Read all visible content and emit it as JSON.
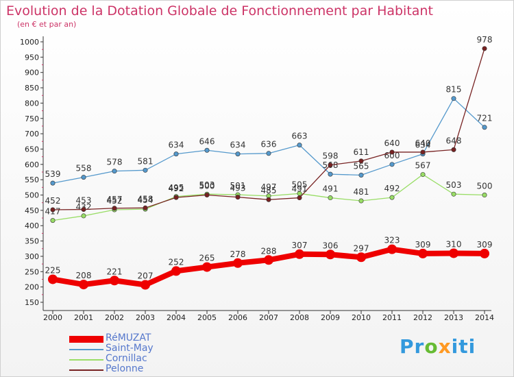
{
  "header": {
    "title": "Evolution de la Dotation Globale de Fonctionnement par Habitant",
    "subtitle": "(en € et par an)"
  },
  "logo": {
    "text": "Proxiti",
    "colors": [
      "#3399dd",
      "#66bb33",
      "#ff9922"
    ]
  },
  "chart_data": {
    "type": "line",
    "title": "Evolution de la Dotation Globale de Fonctionnement par Habitant",
    "subtitle": "(en € et par an)",
    "xlabel": "",
    "ylabel": "",
    "x": [
      "2000",
      "2001",
      "2002",
      "2003",
      "2004",
      "2005",
      "2006",
      "2007",
      "2008",
      "2009",
      "2010",
      "2011",
      "2012",
      "2013",
      "2014"
    ],
    "ylim": [
      150,
      1000
    ],
    "yticks": [
      150,
      200,
      250,
      300,
      350,
      400,
      450,
      500,
      550,
      600,
      650,
      700,
      750,
      800,
      850,
      900,
      950,
      1000
    ],
    "grid": false,
    "legend": "bottom-left",
    "series": [
      {
        "name": "RéMUZAT",
        "color": "#ee0000",
        "values": [
          225,
          208,
          221,
          207,
          252,
          265,
          278,
          288,
          307,
          306,
          297,
          323,
          309,
          310,
          309
        ],
        "labels": [
          "225",
          "208",
          "221",
          "207",
          "252",
          "265",
          "278",
          "288",
          "307",
          "306",
          "297",
          "323",
          "309",
          "310",
          "309"
        ]
      },
      {
        "name": "Saint-May",
        "color": "#5599cc",
        "values": [
          539,
          558,
          578,
          581,
          634,
          646,
          634,
          636,
          663,
          568,
          565,
          600,
          634,
          815,
          721
        ],
        "labels": [
          "539",
          "558",
          "578",
          "581",
          "634",
          "646",
          "634",
          "636",
          "663",
          "568",
          "565",
          "600",
          "634",
          "815",
          "721"
        ]
      },
      {
        "name": "Cornillac",
        "color": "#99dd66",
        "values": [
          417,
          432,
          452,
          454,
          495,
          503,
          501,
          497,
          505,
          491,
          481,
          492,
          567,
          503,
          500
        ],
        "labels": [
          "417",
          "432",
          "452",
          "454",
          "495",
          "503",
          "501",
          "497",
          "505",
          "491",
          "481",
          "492",
          "567",
          "503",
          "500"
        ]
      },
      {
        "name": "Pelonne",
        "color": "#772222",
        "values": [
          452,
          453,
          457,
          458,
          492,
          500,
          493,
          485,
          491,
          598,
          611,
          640,
          640,
          648,
          978
        ],
        "labels": [
          "452",
          "453",
          "457",
          "458",
          "492",
          "500",
          "493",
          "485",
          "491",
          "598",
          "611",
          "640",
          "640",
          "648",
          "978"
        ]
      }
    ]
  }
}
